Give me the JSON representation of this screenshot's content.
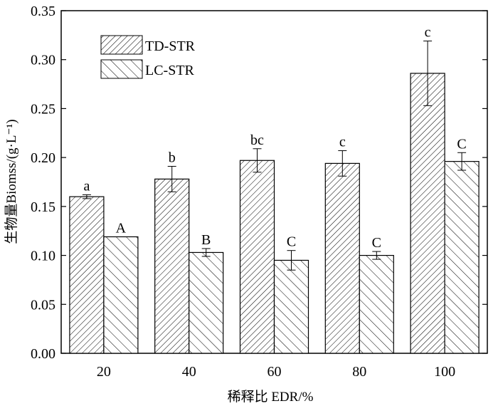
{
  "chart_data": {
    "type": "bar",
    "title": "",
    "xlabel": "稀释比 EDR/%",
    "ylabel": "生物量Biomss/(g·L⁻¹)",
    "categories": [
      "20",
      "40",
      "60",
      "80",
      "100"
    ],
    "ylim": [
      0,
      0.35
    ],
    "yticks": [
      "0.00",
      "0.05",
      "0.10",
      "0.15",
      "0.20",
      "0.25",
      "0.30",
      "0.35"
    ],
    "legend_position": "top-left",
    "series": [
      {
        "name": "TD-STR",
        "values": [
          0.16,
          0.178,
          0.197,
          0.194,
          0.286
        ],
        "errors": [
          0.002,
          0.013,
          0.012,
          0.013,
          0.033
        ],
        "labels": [
          "a",
          "b",
          "bc",
          "c",
          "c"
        ],
        "hatch": "forward-dense"
      },
      {
        "name": "LC-STR",
        "values": [
          0.119,
          0.103,
          0.095,
          0.1,
          0.196
        ],
        "errors": [
          0.0,
          0.004,
          0.01,
          0.004,
          0.009
        ],
        "labels": [
          "A",
          "B",
          "C",
          "C",
          "C"
        ],
        "hatch": "backward-sparse"
      }
    ]
  }
}
